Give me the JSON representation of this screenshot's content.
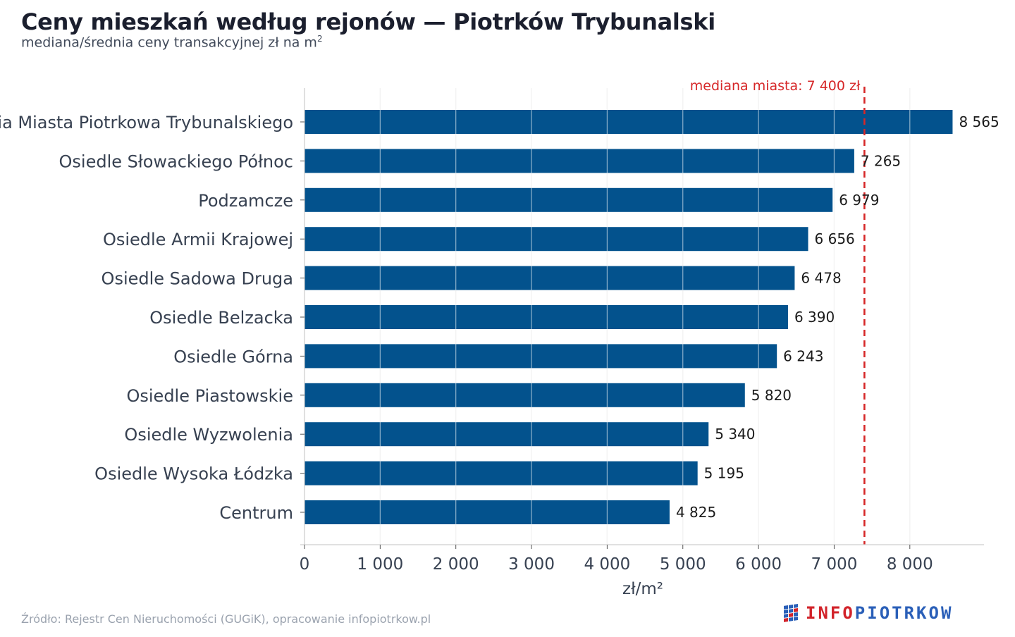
{
  "header": {
    "title": "Ceny mieszkań według rejonów — Piotrków Trybunalski",
    "subtitle": "mediana/średnia ceny transakcyjnej zł na m",
    "subtitle_sup": "2"
  },
  "chart_data": {
    "type": "bar",
    "orientation": "horizontal",
    "xlabel": "zł/m²",
    "xlim": [
      0,
      9000
    ],
    "xticks": [
      0,
      1000,
      2000,
      3000,
      4000,
      5000,
      6000,
      7000,
      8000
    ],
    "xtick_labels": [
      "0",
      "1 000",
      "2 000",
      "3 000",
      "4 000",
      "5 000",
      "6 000",
      "7 000",
      "8 000"
    ],
    "categories": [
      "ia Miasta Piotrkowa Trybunalskiego",
      "Osiedle Słowackiego Północ",
      "Podzamcze",
      "Osiedle Armii Krajowej",
      "Osiedle Sadowa Druga",
      "Osiedle Belzacka",
      "Osiedle Górna",
      "Osiedle Piastowskie",
      "Osiedle Wyzwolenia",
      "Osiedle Wysoka Łódzka",
      "Centrum"
    ],
    "values": [
      8565,
      7265,
      6979,
      6656,
      6478,
      6390,
      6243,
      5820,
      5340,
      5195,
      4825
    ],
    "value_labels": [
      "8 565",
      "7 265",
      "6 979",
      "6 656",
      "6 478",
      "6 390",
      "6 243",
      "5 820",
      "5 340",
      "5 195",
      "4 825"
    ],
    "reference_line": {
      "value": 7400,
      "label": "mediana miasta: 7 400 zł",
      "color": "#d62728",
      "style": "dashed"
    },
    "bar_color": "#03528d",
    "grid": true
  },
  "footer": {
    "source": "Źródło: Rejestr Cen Nieruchomości (GUGiK), opracowanie infopiotrkow.pl",
    "logo_info": "INFO",
    "logo_piotrkow": "PIOTRKOW"
  },
  "colors": {
    "title": "#1b1f2e",
    "subtitle": "#414a5a",
    "category_label": "#374151",
    "value_label": "#1a1a1a",
    "grid": "#e4e4e4",
    "source": "#9aa2ae"
  }
}
